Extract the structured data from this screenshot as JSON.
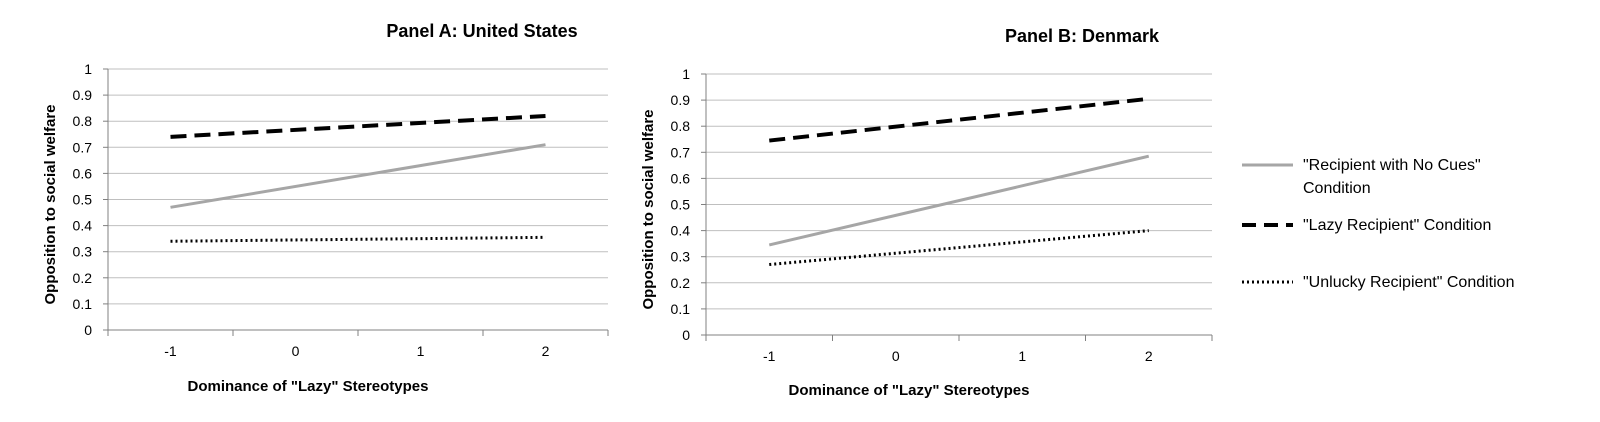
{
  "chart_data": [
    {
      "type": "line",
      "title": "Panel A: United States",
      "xlabel": "Dominance of \"Lazy\" Stereotypes",
      "ylabel": "Opposition to social welfare",
      "x": [
        -1,
        2
      ],
      "x_ticks": [
        "-1",
        "0",
        "1",
        "2"
      ],
      "y_ticks": [
        "0",
        "0.1",
        "0.2",
        "0.3",
        "0.4",
        "0.5",
        "0.6",
        "0.7",
        "0.8",
        "0.9",
        "1"
      ],
      "ylim": [
        0,
        1
      ],
      "grid": true,
      "series": [
        {
          "name": "\"Recipient with No Cues\" Condition",
          "values": [
            0.47,
            0.71
          ],
          "color": "#a6a6a6",
          "style": "solid"
        },
        {
          "name": "\"Lazy Recipient\" Condition",
          "values": [
            0.74,
            0.82
          ],
          "color": "#000000",
          "style": "dashed"
        },
        {
          "name": "\"Unlucky Recipient\" Condition",
          "values": [
            0.34,
            0.355
          ],
          "color": "#000000",
          "style": "dotted"
        }
      ]
    },
    {
      "type": "line",
      "title": "Panel B: Denmark",
      "xlabel": "Dominance of \"Lazy\" Stereotypes",
      "ylabel": "Opposition to social welfare",
      "x": [
        -1,
        2
      ],
      "x_ticks": [
        "-1",
        "0",
        "1",
        "2"
      ],
      "y_ticks": [
        "0",
        "0.1",
        "0.2",
        "0.3",
        "0.4",
        "0.5",
        "0.6",
        "0.7",
        "0.8",
        "0.9",
        "1"
      ],
      "ylim": [
        0,
        1
      ],
      "grid": true,
      "legend": "right",
      "series": [
        {
          "name": "\"Recipient with No Cues\" Condition",
          "values": [
            0.345,
            0.685
          ],
          "color": "#a6a6a6",
          "style": "solid"
        },
        {
          "name": "\"Lazy Recipient\" Condition",
          "values": [
            0.745,
            0.905
          ],
          "color": "#000000",
          "style": "dashed"
        },
        {
          "name": "\"Unlucky Recipient\" Condition",
          "values": [
            0.27,
            0.4
          ],
          "color": "#000000",
          "style": "dotted"
        }
      ]
    }
  ],
  "legend": {
    "items": [
      {
        "line1": "\"Recipient with No Cues\"",
        "line2": "Condition",
        "style": "solid",
        "color": "#a6a6a6"
      },
      {
        "line1": "\"Lazy Recipient\" Condition",
        "line2": "",
        "style": "dashed",
        "color": "#000000"
      },
      {
        "line1": "\"Unlucky Recipient\" Condition",
        "line2": "",
        "style": "dotted",
        "color": "#000000"
      }
    ]
  }
}
